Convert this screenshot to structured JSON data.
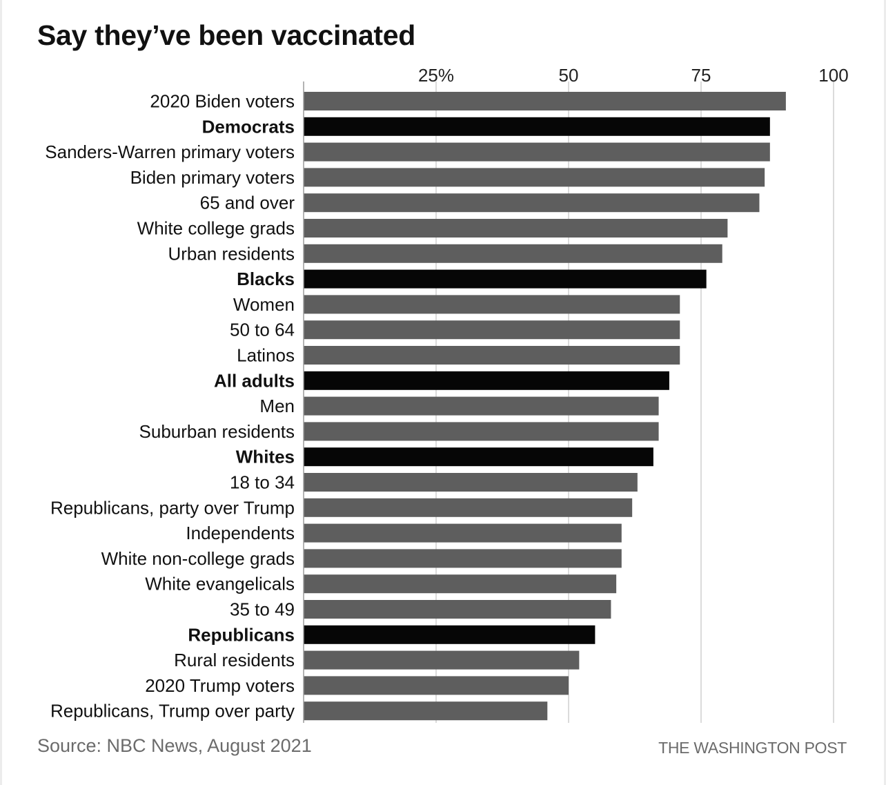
{
  "chart_data": {
    "type": "bar",
    "orientation": "horizontal",
    "title": "Say they’ve been vaccinated",
    "xlabel": "",
    "ylabel": "",
    "xlim": [
      0,
      100
    ],
    "x_ticks": [
      25,
      50,
      75,
      100
    ],
    "x_tick_labels": [
      "25%",
      "50",
      "75",
      "100"
    ],
    "grid": true,
    "colors": {
      "default": "#5e5e5e",
      "highlight": "#060606",
      "grid": "#cfcfcf",
      "axis": "#9a9a9a"
    },
    "categories": [
      "2020 Biden voters",
      "Democrats",
      "Sanders-Warren primary voters",
      "Biden primary voters",
      "65 and over",
      "White college grads",
      "Urban residents",
      "Blacks",
      "Women",
      "50 to 64",
      "Latinos",
      "All adults",
      "Men",
      "Suburban residents",
      "Whites",
      "18 to 34",
      "Republicans, party over Trump",
      "Independents",
      "White non-college grads",
      "White evangelicals",
      "35 to 49",
      "Republicans",
      "Rural residents",
      "2020 Trump voters",
      "Republicans, Trump over party"
    ],
    "values": [
      91,
      88,
      88,
      87,
      86,
      80,
      79,
      76,
      71,
      71,
      71,
      69,
      67,
      67,
      66,
      63,
      62,
      60,
      60,
      59,
      58,
      55,
      52,
      50,
      46
    ],
    "highlighted": [
      "Democrats",
      "Blacks",
      "All adults",
      "Whites",
      "Republicans"
    ]
  },
  "footer": {
    "source": "Source: NBC News, August 2021",
    "brand": "THE WASHINGTON POST"
  }
}
